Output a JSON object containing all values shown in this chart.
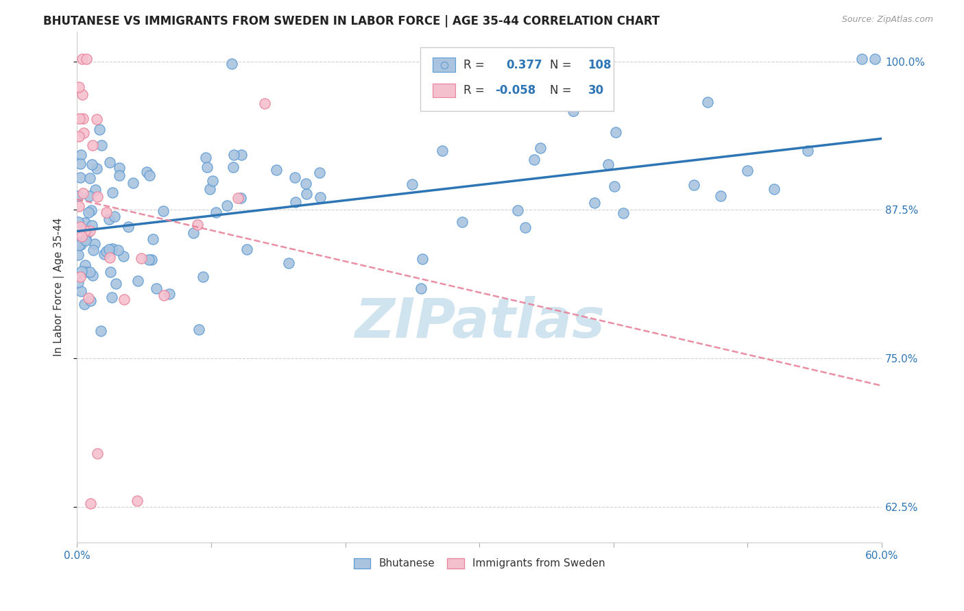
{
  "title": "BHUTANESE VS IMMIGRANTS FROM SWEDEN IN LABOR FORCE | AGE 35-44 CORRELATION CHART",
  "source": "Source: ZipAtlas.com",
  "ylabel": "In Labor Force | Age 35-44",
  "xlim": [
    0.0,
    0.6
  ],
  "ylim": [
    0.595,
    1.025
  ],
  "blue_r": 0.377,
  "blue_n": 108,
  "pink_r": -0.058,
  "pink_n": 30,
  "blue_color": "#aac4df",
  "blue_edge_color": "#5b9bd5",
  "pink_color": "#f5c0ce",
  "pink_edge_color": "#e8829a",
  "blue_line_color": "#2e75b6",
  "pink_line_color": "#e8829a",
  "watermark_color": "#d0e4f0",
  "legend_label_blue": "Bhutanese",
  "legend_label_pink": "Immigrants from Sweden",
  "blue_line_x0": 0.0,
  "blue_line_y0": 0.857,
  "blue_line_x1": 0.6,
  "blue_line_y1": 0.935,
  "pink_line_x0": 0.0,
  "pink_line_y0": 0.884,
  "pink_line_x1": 0.6,
  "pink_line_y1": 0.727,
  "yticks": [
    0.625,
    0.75,
    0.875,
    1.0
  ],
  "ytick_labels": [
    "62.5%",
    "75.0%",
    "87.5%",
    "100.0%"
  ],
  "xticks": [
    0.0,
    0.1,
    0.2,
    0.3,
    0.4,
    0.5,
    0.6
  ],
  "xtick_labels": [
    "0.0%",
    "",
    "",
    "",
    "",
    "",
    "60.0%"
  ]
}
